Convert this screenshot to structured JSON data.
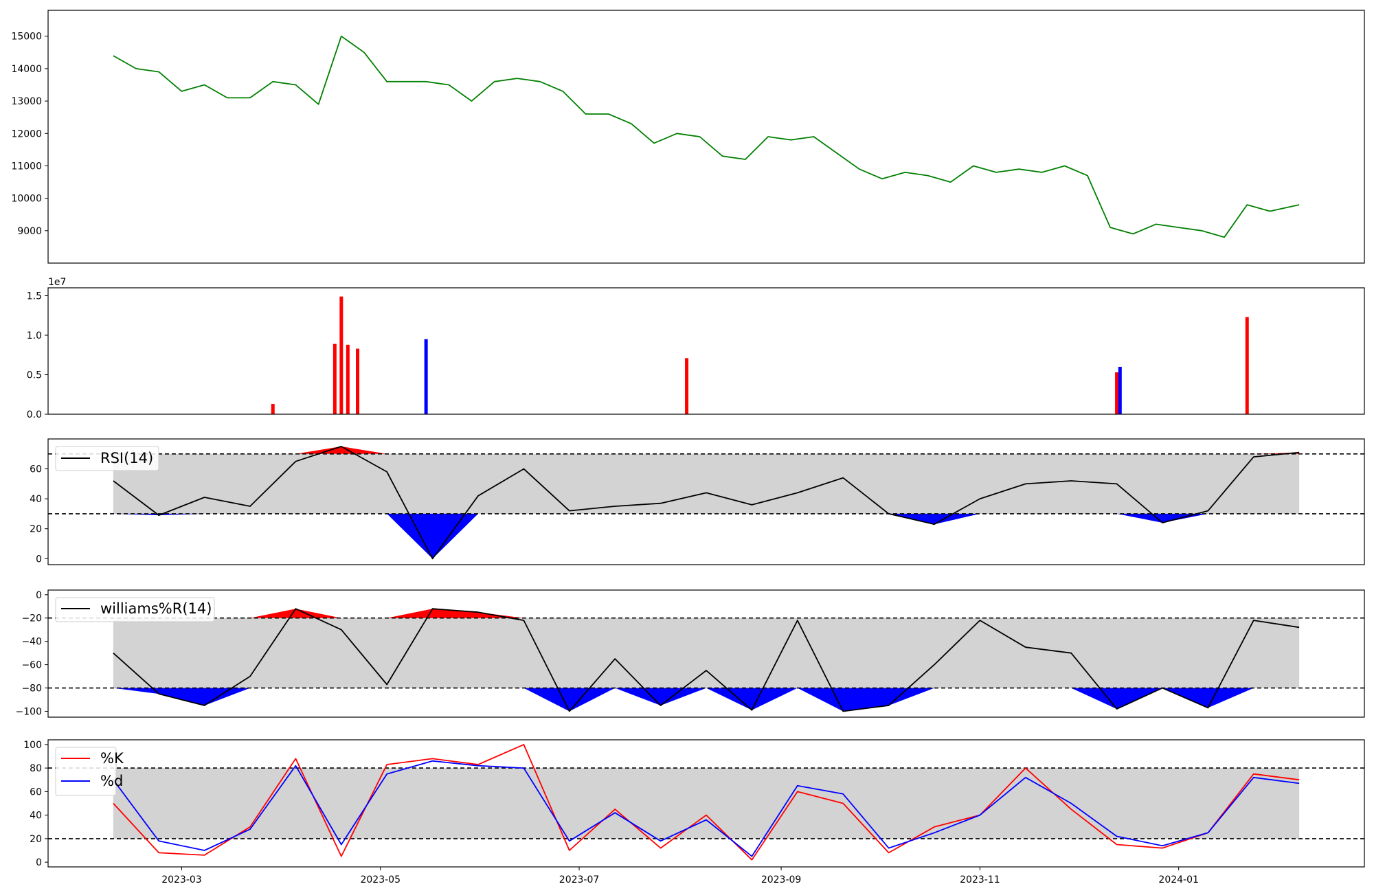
{
  "figure": {
    "background": "#ffffff"
  },
  "x_axis": {
    "ticks": [
      "2023-03",
      "2023-05",
      "2023-07",
      "2023-09",
      "2023-11",
      "2024-01"
    ]
  },
  "colors": {
    "price": "#008000",
    "up": "#ff0000",
    "down": "#0000ff",
    "neutral": "#000000",
    "band": "#d3d3d3",
    "k": "#ff0000",
    "d": "#0000ff"
  },
  "chart_data": [
    {
      "type": "line",
      "panel": "price",
      "ylim": [
        8000,
        15800
      ],
      "yticks": [
        "9000",
        "10000",
        "11000",
        "12000",
        "13000",
        "14000",
        "15000"
      ],
      "ytick_values": [
        9000,
        10000,
        11000,
        12000,
        13000,
        14000,
        15000
      ],
      "x": [
        "2023-02-08",
        "2023-02-15",
        "2023-02-22",
        "2023-03-01",
        "2023-03-08",
        "2023-03-15",
        "2023-03-22",
        "2023-03-29",
        "2023-04-05",
        "2023-04-12",
        "2023-04-19",
        "2023-04-26",
        "2023-05-03",
        "2023-05-15",
        "2023-05-22",
        "2023-05-29",
        "2023-06-05",
        "2023-06-12",
        "2023-06-19",
        "2023-06-26",
        "2023-07-03",
        "2023-07-10",
        "2023-07-17",
        "2023-07-24",
        "2023-07-31",
        "2023-08-07",
        "2023-08-14",
        "2023-08-21",
        "2023-08-28",
        "2023-09-04",
        "2023-09-11",
        "2023-09-18",
        "2023-09-25",
        "2023-10-02",
        "2023-10-09",
        "2023-10-16",
        "2023-10-23",
        "2023-10-30",
        "2023-11-06",
        "2023-11-13",
        "2023-11-20",
        "2023-11-27",
        "2023-12-04",
        "2023-12-11",
        "2023-12-18",
        "2023-12-25",
        "2024-01-01",
        "2024-01-08",
        "2024-01-15",
        "2024-01-22",
        "2024-01-29",
        "2024-02-07"
      ],
      "values": [
        14400,
        14000,
        13900,
        13300,
        13500,
        13100,
        13100,
        13600,
        13500,
        12900,
        15000,
        14500,
        13600,
        13600,
        13500,
        13000,
        13600,
        13700,
        13600,
        13300,
        12600,
        12600,
        12300,
        11700,
        12000,
        11900,
        11300,
        11200,
        11900,
        11800,
        11900,
        11400,
        10900,
        10600,
        10800,
        10700,
        10500,
        11000,
        10800,
        10900,
        10800,
        11000,
        10700,
        9100,
        8900,
        9200,
        9100,
        9000,
        8800,
        9800,
        9600,
        9800
      ],
      "series": [
        {
          "name": "",
          "color": "#008000"
        }
      ]
    },
    {
      "type": "bar",
      "panel": "volume",
      "offset_text": "1e7",
      "ylim": [
        0,
        1.6
      ],
      "yticks": [
        "0.0",
        "0.5",
        "1.0",
        "1.5"
      ],
      "ytick_values": [
        0,
        0.5,
        1.0,
        1.5
      ],
      "x": [
        "2023-03-29",
        "2023-04-17",
        "2023-04-19",
        "2023-04-21",
        "2023-04-24",
        "2023-05-15",
        "2023-08-03",
        "2023-12-13",
        "2023-12-14",
        "2024-01-22"
      ],
      "values": [
        0.13,
        0.89,
        1.49,
        0.88,
        0.83,
        0.95,
        0.71,
        0.53,
        0.6,
        1.23
      ],
      "note_unit": "x 1e7"
    },
    {
      "type": "line",
      "panel": "rsi",
      "legend": [
        "RSI(14)"
      ],
      "ylim": [
        -4,
        80
      ],
      "yticks": [
        "0",
        "20",
        "40",
        "60"
      ],
      "ytick_values": [
        0,
        20,
        40,
        60
      ],
      "thresholds": [
        30,
        70
      ],
      "x": [
        "2023-02-08",
        "2023-02-22",
        "2023-03-08",
        "2023-03-22",
        "2023-04-05",
        "2023-04-19",
        "2023-05-03",
        "2023-05-17",
        "2023-05-31",
        "2023-06-14",
        "2023-06-28",
        "2023-07-12",
        "2023-07-26",
        "2023-08-09",
        "2023-08-23",
        "2023-09-06",
        "2023-09-20",
        "2023-10-04",
        "2023-10-18",
        "2023-11-01",
        "2023-11-15",
        "2023-11-29",
        "2023-12-13",
        "2023-12-27",
        "2024-01-10",
        "2024-01-24",
        "2024-02-07"
      ],
      "values": [
        52,
        29,
        41,
        35,
        65,
        75,
        58,
        0,
        42,
        60,
        32,
        35,
        37,
        44,
        36,
        44,
        54,
        30,
        23,
        40,
        50,
        52,
        50,
        24,
        32,
        68,
        71
      ],
      "series": [
        {
          "name": "RSI(14)",
          "color": "#000000"
        }
      ]
    },
    {
      "type": "line",
      "panel": "williams",
      "legend": [
        "williams%R(14)"
      ],
      "ylim": [
        -105,
        4
      ],
      "yticks": [
        "0",
        "−20",
        "−40",
        "−60",
        "−80",
        "−100"
      ],
      "ytick_values": [
        0,
        -20,
        -40,
        -60,
        -80,
        -100
      ],
      "thresholds": [
        -20,
        -80
      ],
      "x": [
        "2023-02-08",
        "2023-02-22",
        "2023-03-08",
        "2023-03-22",
        "2023-04-05",
        "2023-04-19",
        "2023-05-03",
        "2023-05-17",
        "2023-05-31",
        "2023-06-14",
        "2023-06-28",
        "2023-07-12",
        "2023-07-26",
        "2023-08-09",
        "2023-08-23",
        "2023-09-06",
        "2023-09-20",
        "2023-10-04",
        "2023-10-18",
        "2023-11-01",
        "2023-11-15",
        "2023-11-29",
        "2023-12-13",
        "2023-12-27",
        "2024-01-10",
        "2024-01-24",
        "2024-02-07"
      ],
      "values": [
        -50,
        -85,
        -95,
        -70,
        -12,
        -30,
        -77,
        -12,
        -15,
        -22,
        -100,
        -55,
        -95,
        -65,
        -99,
        -22,
        -100,
        -95,
        -60,
        -22,
        -45,
        -50,
        -98,
        -80,
        -97,
        -22,
        -28
      ],
      "series": [
        {
          "name": "williams%R(14)",
          "color": "#000000"
        }
      ]
    },
    {
      "type": "line",
      "panel": "stochastic",
      "legend": [
        "%K",
        "%d"
      ],
      "ylim": [
        -4,
        104
      ],
      "yticks": [
        "0",
        "20",
        "40",
        "60",
        "80",
        "100"
      ],
      "ytick_values": [
        0,
        20,
        40,
        60,
        80,
        100
      ],
      "thresholds": [
        20,
        80
      ],
      "x": [
        "2023-02-08",
        "2023-02-22",
        "2023-03-08",
        "2023-03-22",
        "2023-04-05",
        "2023-04-19",
        "2023-05-03",
        "2023-05-17",
        "2023-05-31",
        "2023-06-14",
        "2023-06-28",
        "2023-07-12",
        "2023-07-26",
        "2023-08-09",
        "2023-08-23",
        "2023-09-06",
        "2023-09-20",
        "2023-10-04",
        "2023-10-18",
        "2023-11-01",
        "2023-11-15",
        "2023-11-29",
        "2023-12-13",
        "2023-12-27",
        "2024-01-10",
        "2024-01-24",
        "2024-02-07"
      ],
      "series": [
        {
          "name": "%K",
          "color": "#ff0000",
          "values": [
            50,
            8,
            6,
            30,
            88,
            5,
            83,
            88,
            83,
            100,
            10,
            45,
            12,
            40,
            2,
            60,
            50,
            8,
            30,
            40,
            80,
            45,
            15,
            12,
            25,
            75,
            70
          ]
        },
        {
          "name": "%d",
          "color": "#0000ff",
          "values": [
            70,
            18,
            10,
            28,
            82,
            15,
            75,
            86,
            82,
            80,
            18,
            42,
            18,
            36,
            5,
            65,
            58,
            12,
            25,
            40,
            72,
            50,
            22,
            14,
            25,
            72,
            67
          ]
        }
      ]
    }
  ]
}
